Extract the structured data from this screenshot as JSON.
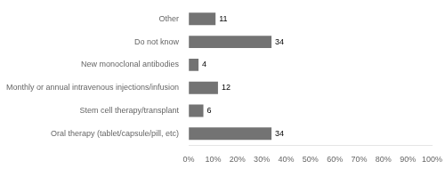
{
  "chart_data": {
    "type": "bar",
    "orientation": "horizontal",
    "categories": [
      "Oral therapy (tablet/capsule/pill, etc)",
      "Stem cell therapy/transplant",
      "Monthly or annual intravenous injections/infusion",
      "New monoclonal antibodies",
      "Do not know",
      "Other"
    ],
    "values": [
      34,
      6,
      12,
      4,
      34,
      11
    ],
    "color": "#737373",
    "xlim": [
      0,
      100
    ],
    "xticks": [
      {
        "value": 0,
        "label": "0%"
      },
      {
        "value": 10,
        "label": "10%"
      },
      {
        "value": 20,
        "label": "20%"
      },
      {
        "value": 30,
        "label": "30%"
      },
      {
        "value": 40,
        "label": "40%"
      },
      {
        "value": 50,
        "label": "50%"
      },
      {
        "value": 60,
        "label": "60%"
      },
      {
        "value": 70,
        "label": "70%"
      },
      {
        "value": 80,
        "label": "80%"
      },
      {
        "value": 90,
        "label": "90%"
      },
      {
        "value": 100,
        "label": "100%"
      }
    ],
    "grid": false,
    "data_labels": true
  }
}
